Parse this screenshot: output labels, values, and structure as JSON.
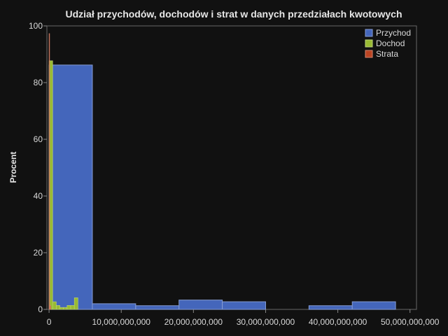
{
  "chart_data": {
    "type": "bar",
    "title": "Udział przychodów, dochodów i strat w danych przedziałach kwotowych",
    "ylabel": "Procent",
    "xlabel": "",
    "xlim": [
      -300000000,
      50900000000
    ],
    "ylim": [
      0,
      100
    ],
    "x_ticks": [
      {
        "value": 0,
        "label": "0"
      },
      {
        "value": 10000000000,
        "label": "10,000,000,000"
      },
      {
        "value": 20000000000,
        "label": "20,000,000,000"
      },
      {
        "value": 30000000000,
        "label": "30,000,000,000"
      },
      {
        "value": 40000000000,
        "label": "40,000,000,000"
      },
      {
        "value": 50000000000,
        "label": "50,000,000,000"
      }
    ],
    "y_ticks": [
      {
        "value": 0,
        "label": "0"
      },
      {
        "value": 20,
        "label": "20"
      },
      {
        "value": 40,
        "label": "40"
      },
      {
        "value": 60,
        "label": "60"
      },
      {
        "value": 80,
        "label": "80"
      },
      {
        "value": 100,
        "label": "100"
      }
    ],
    "legend_position": "top-right",
    "series": [
      {
        "name": "Przychod",
        "color": "#4466bb",
        "bins": [
          {
            "x0": 0,
            "x1": 6000000000,
            "value": 86.2
          },
          {
            "x0": 6000000000,
            "x1": 12000000000,
            "value": 2.0
          },
          {
            "x0": 12000000000,
            "x1": 18000000000,
            "value": 1.3
          },
          {
            "x0": 18000000000,
            "x1": 24000000000,
            "value": 3.3
          },
          {
            "x0": 24000000000,
            "x1": 30000000000,
            "value": 2.7
          },
          {
            "x0": 30000000000,
            "x1": 36000000000,
            "value": 0
          },
          {
            "x0": 36000000000,
            "x1": 42000000000,
            "value": 1.3
          },
          {
            "x0": 42000000000,
            "x1": 48000000000,
            "value": 2.7
          }
        ]
      },
      {
        "name": "Dochod",
        "color": "#99bb33",
        "bins": [
          {
            "x0": 0,
            "x1": 500000000,
            "value": 87.7
          },
          {
            "x0": 500000000,
            "x1": 1000000000,
            "value": 2.7
          },
          {
            "x0": 1000000000,
            "x1": 1500000000,
            "value": 1.4
          },
          {
            "x0": 1500000000,
            "x1": 2000000000,
            "value": 0.7
          },
          {
            "x0": 2000000000,
            "x1": 2500000000,
            "value": 0.7
          },
          {
            "x0": 2500000000,
            "x1": 3000000000,
            "value": 1.4
          },
          {
            "x0": 3000000000,
            "x1": 3500000000,
            "value": 1.4
          },
          {
            "x0": 3500000000,
            "x1": 4000000000,
            "value": 4.1
          }
        ]
      },
      {
        "name": "Strata",
        "color": "#bb4422",
        "bins": [
          {
            "x0": 0,
            "x1": 80000000,
            "value": 97.3
          },
          {
            "x0": 80000000,
            "x1": 160000000,
            "value": 1.4
          },
          {
            "x0": 160000000,
            "x1": 240000000,
            "value": 1.3
          }
        ]
      }
    ]
  }
}
